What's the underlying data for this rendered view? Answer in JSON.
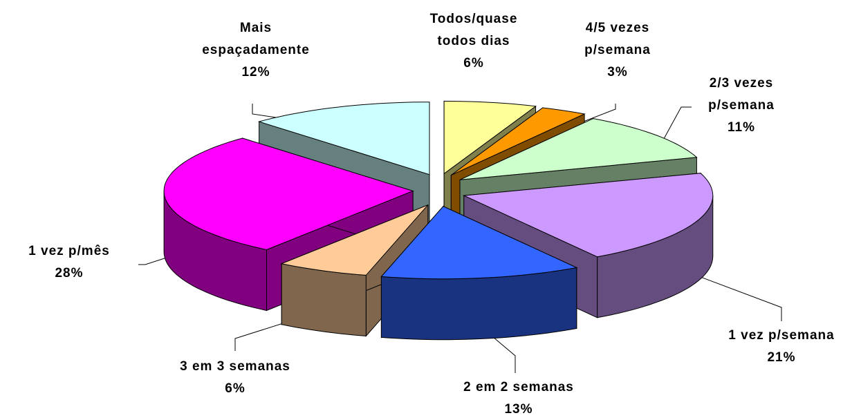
{
  "chart_data": {
    "type": "pie",
    "categories": [
      "Todos/quase todos dias",
      "4/5 vezes p/semana",
      "2/3 vezes p/semana",
      "1 vez p/semana",
      "2 em 2 semanas",
      "3 em 3 semanas",
      "1 vez p/mês",
      "Mais espaçadamente"
    ],
    "values": [
      6,
      3,
      11,
      21,
      13,
      6,
      28,
      12
    ],
    "value_labels": [
      "6%",
      "3%",
      "11%",
      "21%",
      "13%",
      "6%",
      "28%",
      "12%"
    ],
    "colors": [
      "#ffff99",
      "#ff9900",
      "#ccffcc",
      "#cc99ff",
      "#3366ff",
      "#ffcc99",
      "#ff00ff",
      "#ccffff"
    ]
  }
}
